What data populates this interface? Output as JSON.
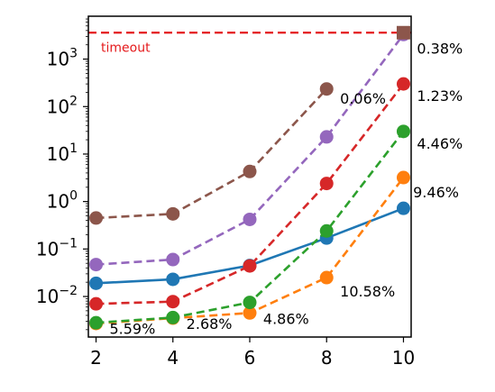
{
  "chart_data": {
    "type": "line",
    "x": [
      2,
      4,
      6,
      8,
      10
    ],
    "xticks": [
      "2",
      "4",
      "6",
      "8",
      "10"
    ],
    "xlim": [
      1.8,
      10.2
    ],
    "yscale": "log",
    "ylim": [
      0.0014,
      8000
    ],
    "yticks": [
      {
        "value": 0.01,
        "base": "10",
        "exp": "−2"
      },
      {
        "value": 0.1,
        "base": "10",
        "exp": "−1"
      },
      {
        "value": 1,
        "base": "10",
        "exp": "0"
      },
      {
        "value": 10,
        "base": "10",
        "exp": "1"
      },
      {
        "value": 100,
        "base": "10",
        "exp": "2"
      },
      {
        "value": 1000,
        "base": "10",
        "exp": "3"
      }
    ],
    "grid": false,
    "timeout": {
      "value": 3600,
      "label": "timeout",
      "color": "#e41a1c"
    },
    "series": [
      {
        "color": "#1f77b4",
        "dashed": false,
        "marker": "circle",
        "values": [
          0.019,
          0.023,
          0.045,
          0.17,
          0.72
        ]
      },
      {
        "color": "#ff7f0e",
        "dashed": true,
        "marker": "circle",
        "values": [
          0.0027,
          0.0035,
          0.0045,
          0.025,
          3.2
        ]
      },
      {
        "color": "#2ca02c",
        "dashed": true,
        "marker": "circle",
        "values": [
          0.0028,
          0.0036,
          0.0075,
          0.24,
          30
        ]
      },
      {
        "color": "#d62728",
        "dashed": true,
        "marker": "circle",
        "values": [
          0.007,
          0.0078,
          0.044,
          2.4,
          300
        ]
      },
      {
        "color": "#9467bd",
        "dashed": true,
        "marker": "circle",
        "values": [
          0.047,
          0.06,
          0.42,
          23,
          3300
        ]
      },
      {
        "color": "#8c564b",
        "dashed": true,
        "marker": "circle",
        "values": [
          0.45,
          0.55,
          4.3,
          235,
          null
        ],
        "end_marker": {
          "x": 10,
          "y": 3600,
          "marker": "square"
        }
      }
    ],
    "annotations": [
      {
        "text": "0.38%",
        "x": 10.35,
        "y": 1700
      },
      {
        "text": "1.23%",
        "x": 10.35,
        "y": 170
      },
      {
        "text": "0.06%",
        "x": 8.35,
        "y": 150
      },
      {
        "text": "4.46%",
        "x": 10.35,
        "y": 17
      },
      {
        "text": "9.46%",
        "x": 10.25,
        "y": 1.6
      },
      {
        "text": "10.58%",
        "x": 8.35,
        "y": 0.013
      },
      {
        "text": "4.86%",
        "x": 6.35,
        "y": 0.0034
      },
      {
        "text": "2.68%",
        "x": 4.35,
        "y": 0.0027
      },
      {
        "text": "5.59%",
        "x": 2.35,
        "y": 0.0021
      }
    ]
  }
}
